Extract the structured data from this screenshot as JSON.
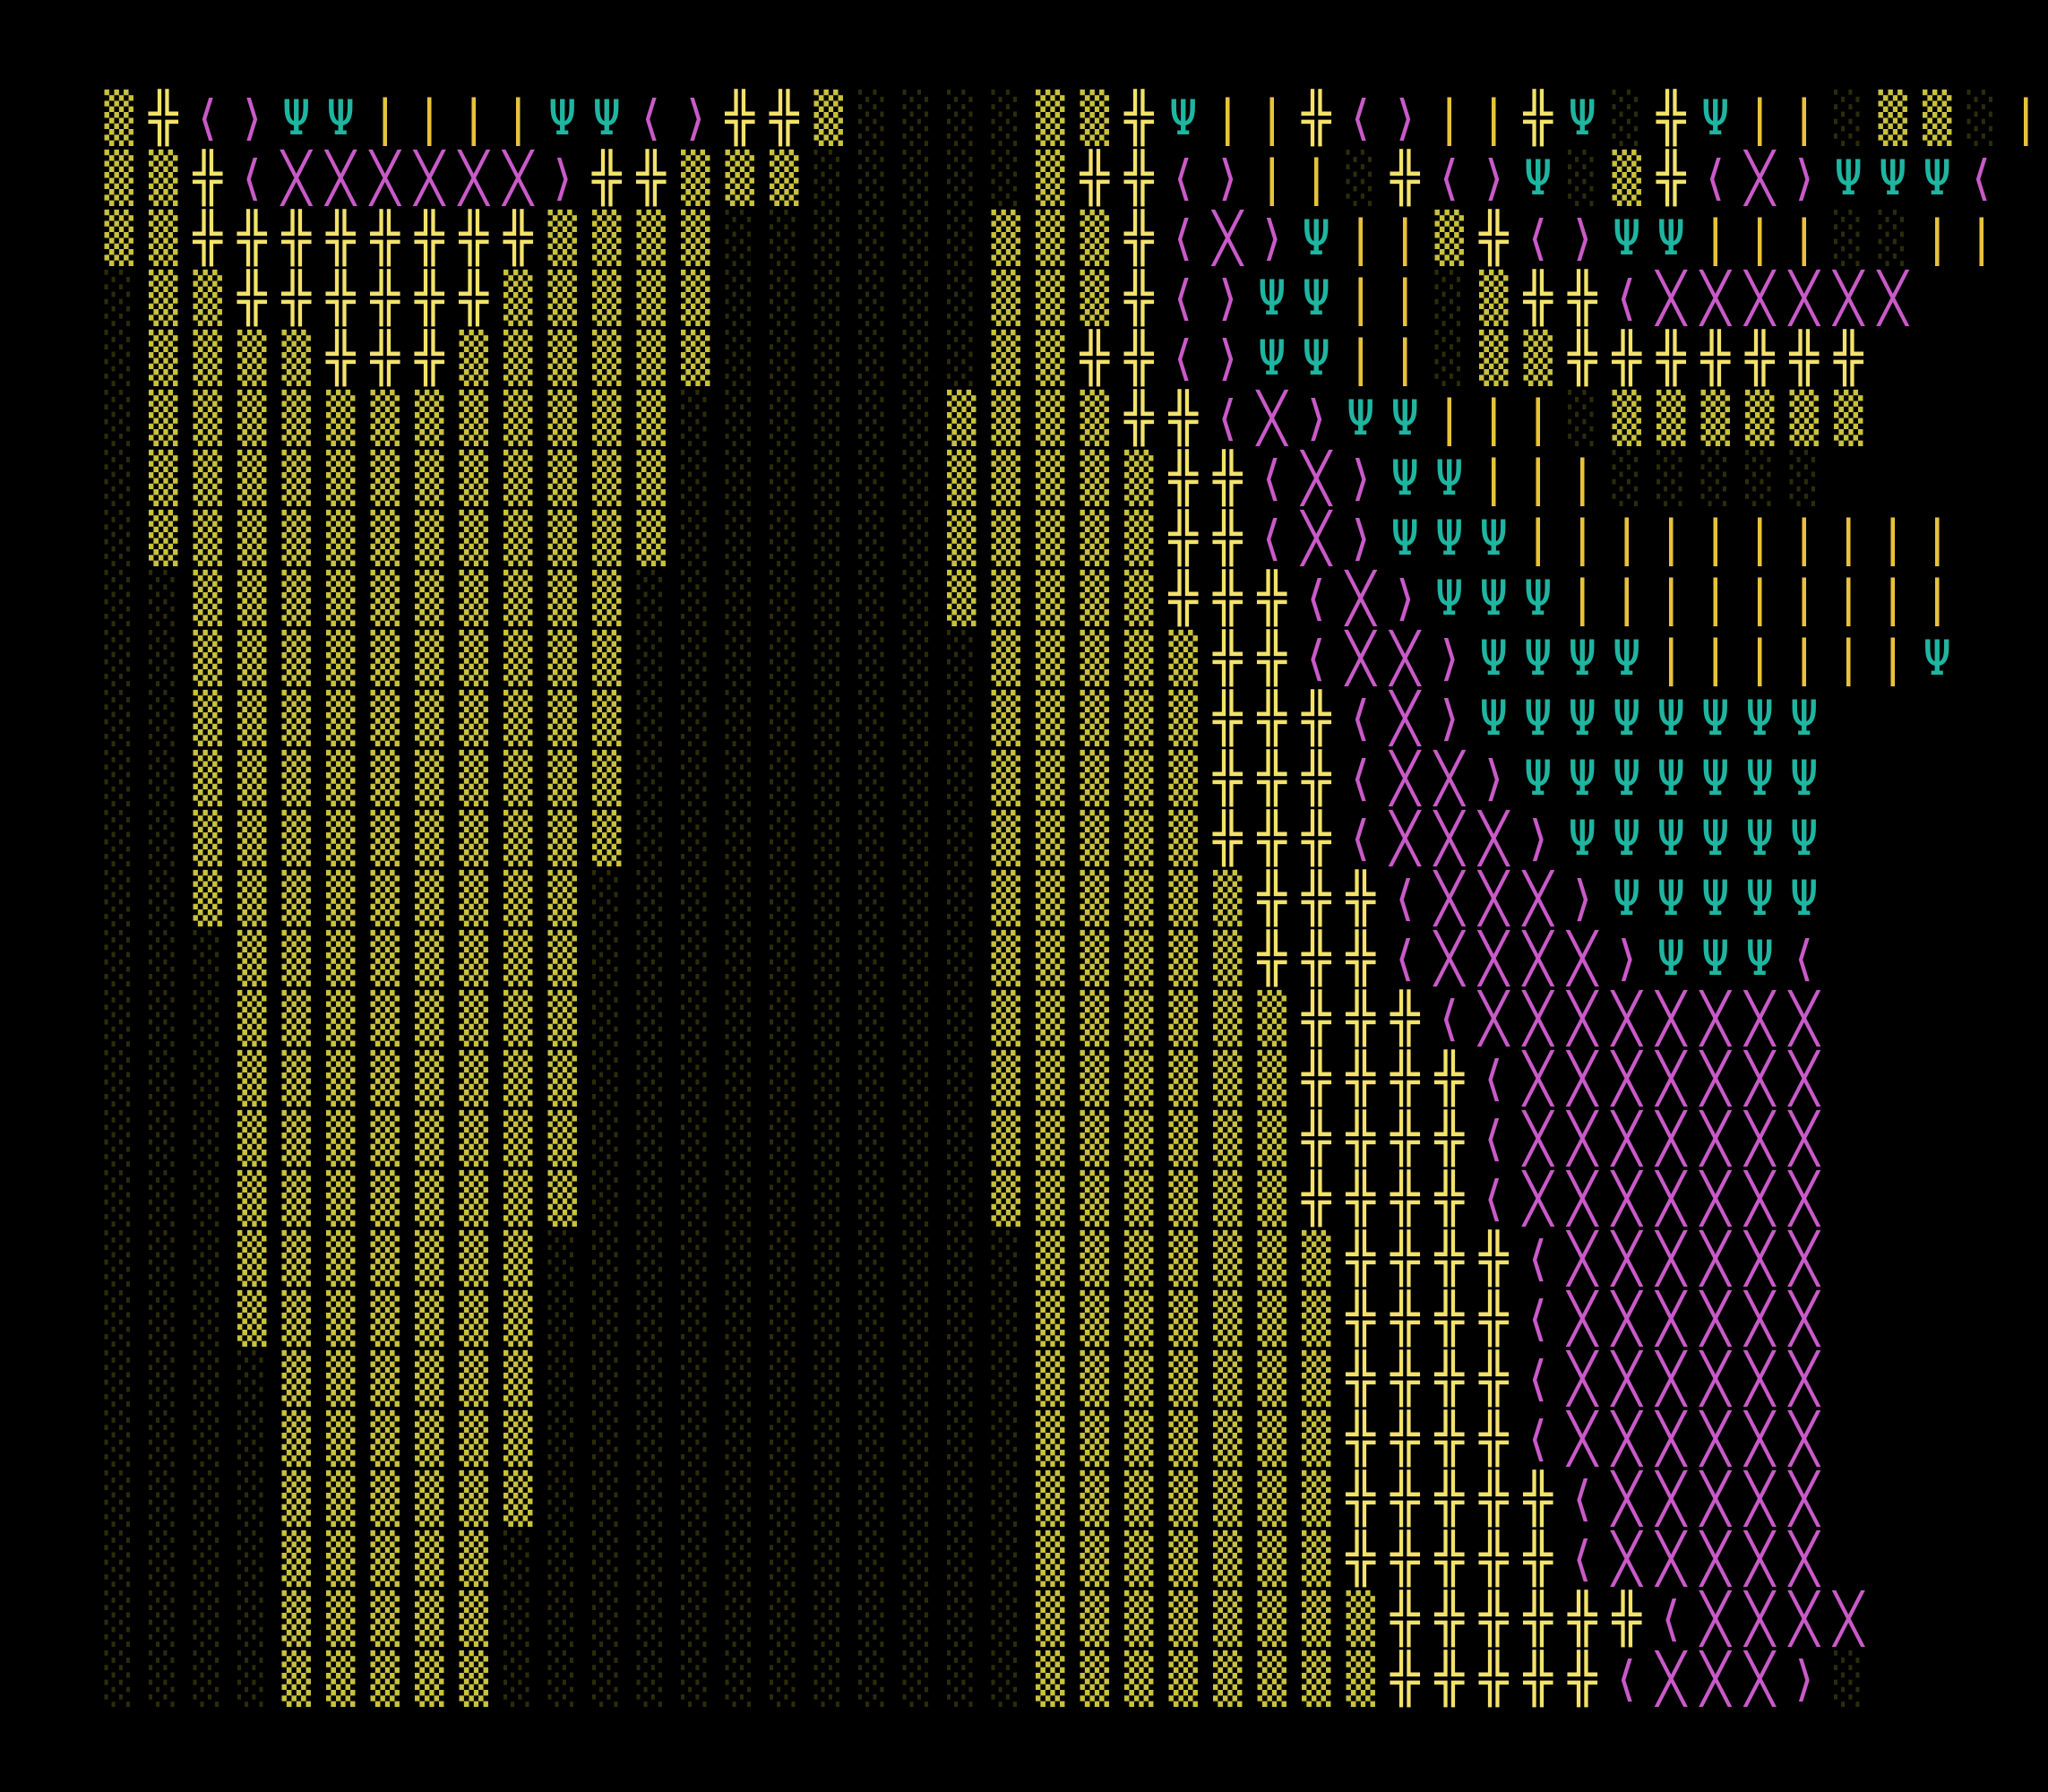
{
  "palette": {
    "background": "#000000",
    "yellow": "#f2e26a",
    "gold": "#e8c23a",
    "teal": "#1fb5a0",
    "magenta": "#c95ac8",
    "shade_dark": "#2c2c0a",
    "shade_mid": "#5a5a1e",
    "shade_light": "#8f8f2d",
    "shade_bright": "#c9c23c"
  },
  "glyphs": {
    "0": "░",
    "1": "░",
    "2": "▒",
    "3": "▒",
    "+": "╬",
    "<": "⟨",
    ">": "⟩",
    "x": "╳",
    "y": "Ψ",
    "|": "|"
  },
  "rows": [
    "3+<>yy||||yy<>++3000033+y||+<>||+y0+y||0330|",
    "33+<xxxxxx>++333000003++<>||0+<>y03+<x>yyy<",
    "33++++++++3333000000333+<x>y||3+<>yy|||00||",
    "033++++++33333000000333+<>yy||03++<xxxxxx",
    "03333+++33333300000033++<>yy||033+++++++",
    "03333333333330000003333++<x>yy|||0333333",
    "033333333333300000033333++<x>yy|||00000",
    "033333333333300000033333++<x>yyy||||||||||",
    "003333333333000000033333+++<x>yyy|||||||||",
    "0033333333330000000033333++<xx>yyyy||||||y",
    "0033333333330000000033333+++<x>yyyyyyyy",
    "0033333333330000000033333+++<xx>yyyyyyy",
    "0033333333330000000033333+++<xxx>yyyyyy",
    "00333333333000000000333333+++<xxx>yyyyy",
    "00033333333000000000333333+++<xxxx>yyy<",
    "000333333330000000003333333+++<xxxxxxxx",
    "000333333330000000003333333++++<xxxxxxx",
    "000333333330000000003333333++++<xxxxxxx",
    "000333333330000000003333333++++<xxxxxxx",
    "0003333333000000000003333333++++<xxxxxx",
    "0003333333000000000003333333++++<xxxxxx",
    "0000333333000000000003333333++++<xxxxxx",
    "0000333333000000000003333333++++<xxxxxx",
    "0000333333000000000003333333+++++<xxxxx",
    "0000333330000000000003333333+++++<xxxxx",
    "00003333300000000000033333333++++++<xxxx",
    "00003333300000000000033333333+++++<xxx>0"
  ]
}
